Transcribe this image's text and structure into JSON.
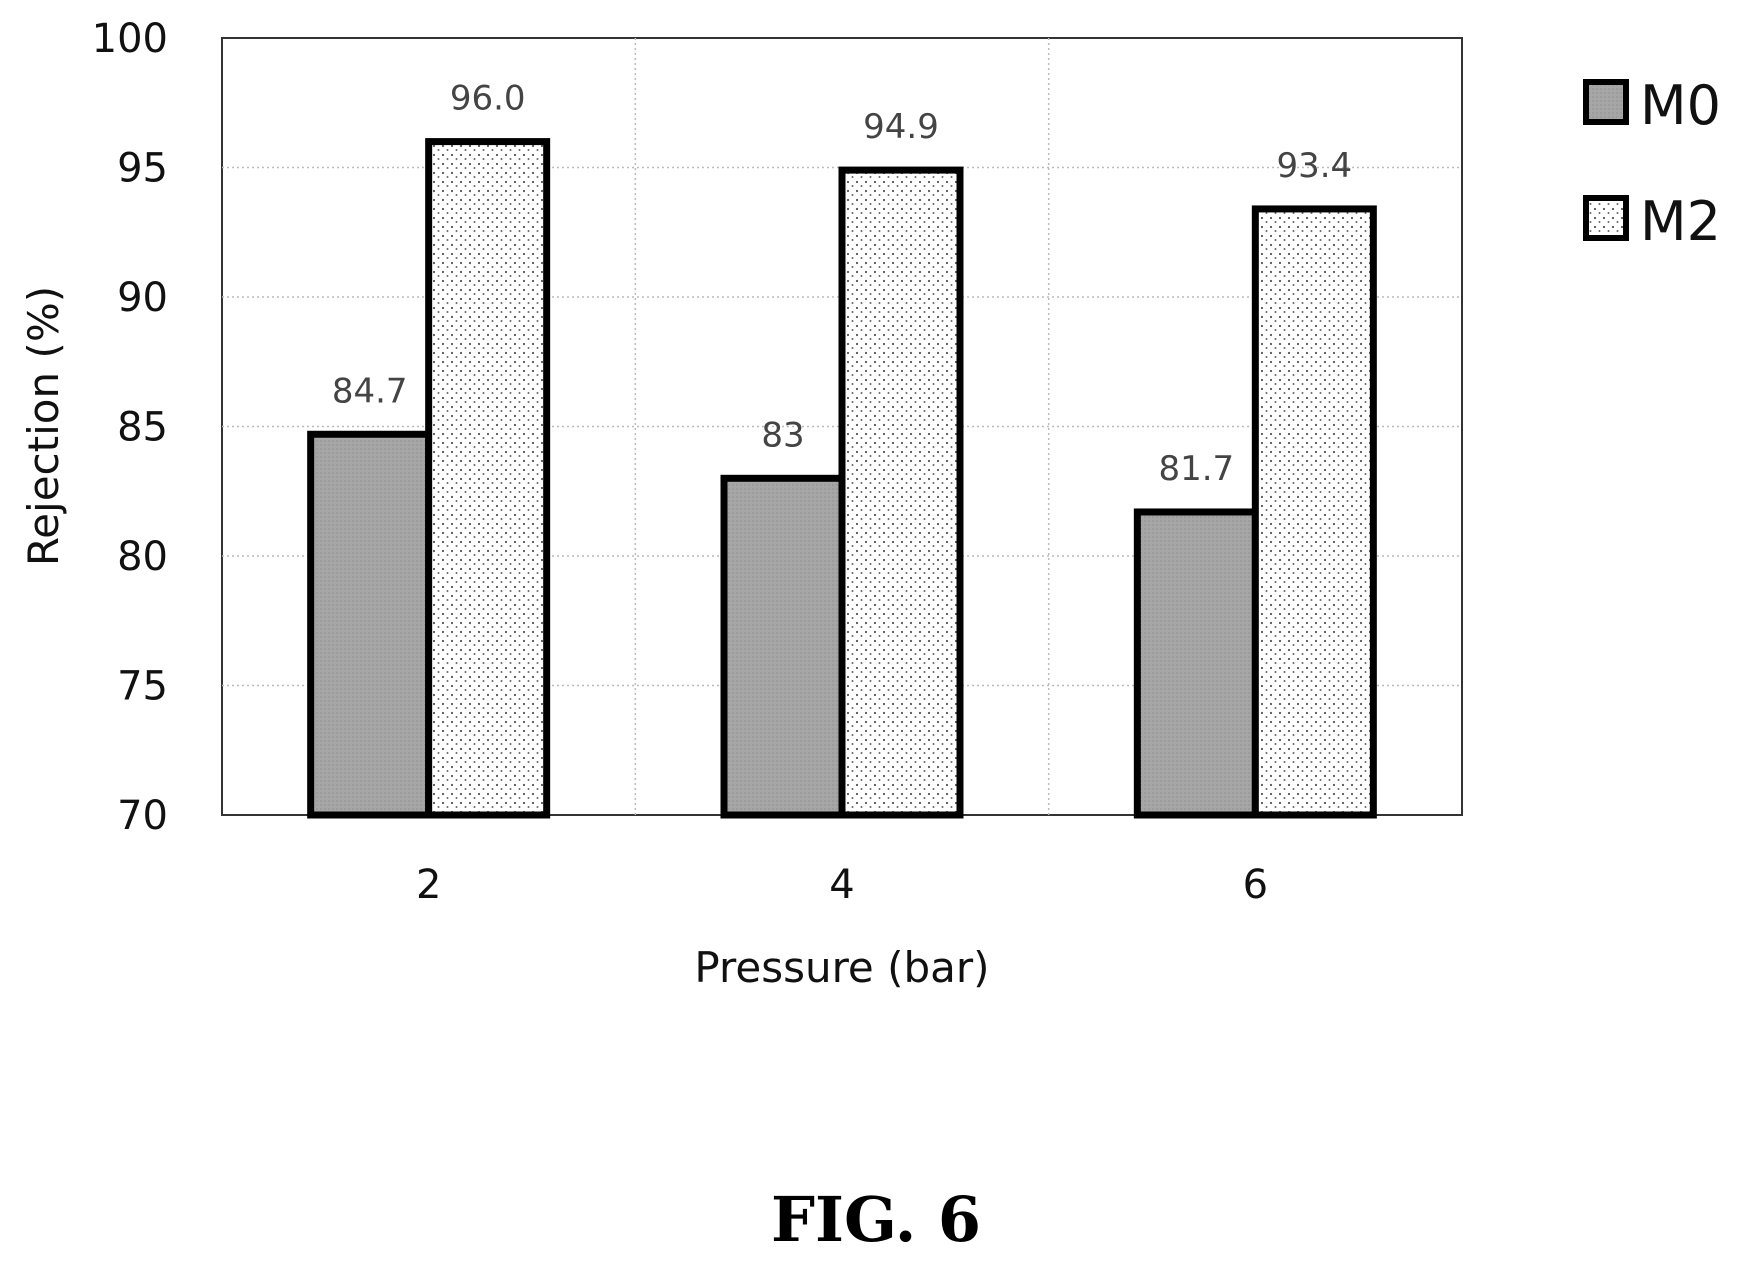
{
  "caption": "FIG. 6",
  "chart_data": {
    "type": "bar",
    "title": "",
    "xlabel": "Pressure (bar)",
    "ylabel": "Rejection (%)",
    "categories": [
      "2",
      "4",
      "6"
    ],
    "ylim": [
      70,
      100
    ],
    "yticks": [
      70,
      75,
      80,
      85,
      90,
      95,
      100
    ],
    "grid": "dotted",
    "legend_position": "right",
    "series": [
      {
        "name": "M0",
        "values": [
          84.7,
          83,
          81.7
        ],
        "labels": [
          "84.7",
          "83",
          "81.7"
        ],
        "color": "#a9a9a9",
        "pattern": "solid"
      },
      {
        "name": "M2",
        "values": [
          96.0,
          94.9,
          93.4
        ],
        "labels": [
          "96.0",
          "94.9",
          "93.4"
        ],
        "color": "#ffffff",
        "pattern": "dotted"
      }
    ]
  }
}
